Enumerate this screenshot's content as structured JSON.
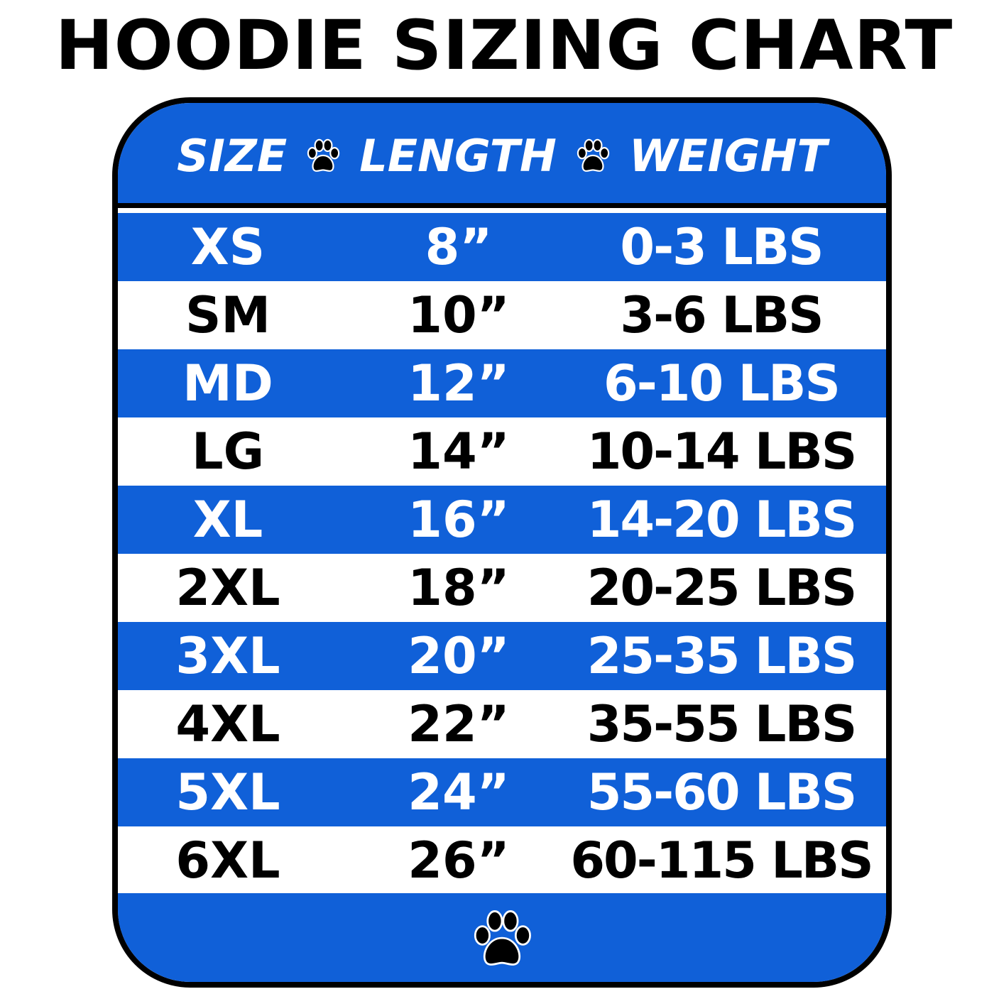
{
  "title": "HOODIE SIZING CHART",
  "colors": {
    "blue": "#1060d8",
    "black": "#000000",
    "white": "#ffffff"
  },
  "header": {
    "size": "SIZE",
    "length": "LENGTH",
    "weight": "WEIGHT",
    "separator_icon": "paw-icon"
  },
  "rows": [
    {
      "size": "XS",
      "length": "8”",
      "weight": "0-3 LBS"
    },
    {
      "size": "SM",
      "length": "10”",
      "weight": "3-6 LBS"
    },
    {
      "size": "MD",
      "length": "12”",
      "weight": "6-10 LBS"
    },
    {
      "size": "LG",
      "length": "14”",
      "weight": "10-14 LBS"
    },
    {
      "size": "XL",
      "length": "16”",
      "weight": "14-20 LBS"
    },
    {
      "size": "2XL",
      "length": "18”",
      "weight": "20-25 LBS"
    },
    {
      "size": "3XL",
      "length": "20”",
      "weight": "25-35 LBS"
    },
    {
      "size": "4XL",
      "length": "22”",
      "weight": "35-55 LBS"
    },
    {
      "size": "5XL",
      "length": "24”",
      "weight": "55-60 LBS"
    },
    {
      "size": "6XL",
      "length": "26”",
      "weight": "60-115 LBS"
    }
  ],
  "footer": {
    "icon": "paw-icon"
  }
}
